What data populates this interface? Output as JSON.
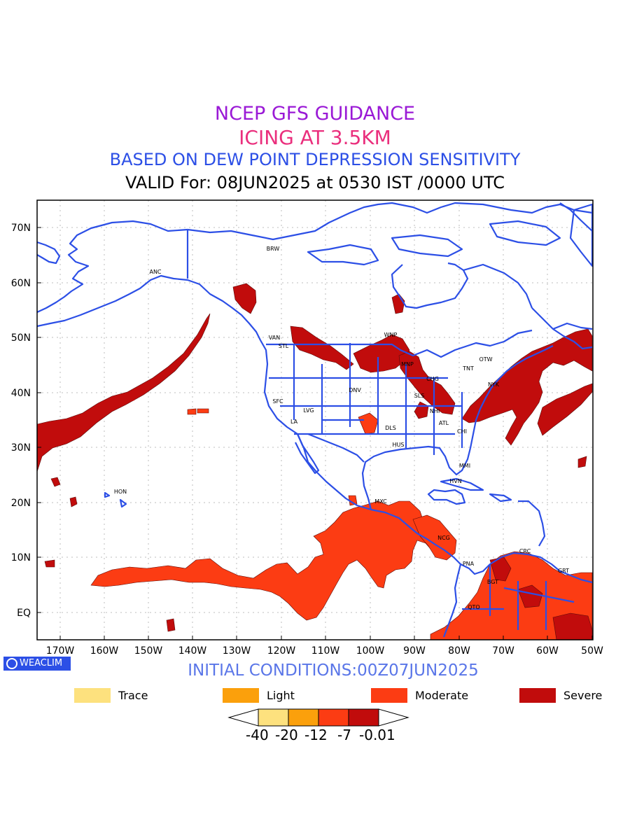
{
  "titles": {
    "line1": "NCEP GFS GUIDANCE",
    "line2": "ICING AT 3.5KM",
    "line3": "BASED ON DEW POINT DEPRESSION SENSITIVITY",
    "line4": "VALID For: 08JUN2025 at 0530 IST /0000 UTC"
  },
  "map": {
    "lon_labels": [
      "170W",
      "160W",
      "150W",
      "140W",
      "130W",
      "120W",
      "110W",
      "100W",
      "90W",
      "80W",
      "70W",
      "60W",
      "50W"
    ],
    "lat_labels": [
      "70N",
      "60N",
      "50N",
      "40N",
      "30N",
      "20N",
      "10N",
      "EQ"
    ],
    "coast_color": "#2c4fe6",
    "stations": [
      {
        "code": "ANC"
      },
      {
        "code": "BRW"
      },
      {
        "code": "VAN"
      },
      {
        "code": "STL"
      },
      {
        "code": "WNP"
      },
      {
        "code": "MNP"
      },
      {
        "code": "OTW"
      },
      {
        "code": "TNT"
      },
      {
        "code": "NYK"
      },
      {
        "code": "CHG"
      },
      {
        "code": "DNV"
      },
      {
        "code": "SFC"
      },
      {
        "code": "LVG"
      },
      {
        "code": "LA"
      },
      {
        "code": "SLS"
      },
      {
        "code": "NHI"
      },
      {
        "code": "ATL"
      },
      {
        "code": "DLS"
      },
      {
        "code": "CHI"
      },
      {
        "code": "HUS"
      },
      {
        "code": "MMI"
      },
      {
        "code": "HVN"
      },
      {
        "code": "HON"
      },
      {
        "code": "MXC"
      },
      {
        "code": "NCG"
      },
      {
        "code": "PNA"
      },
      {
        "code": "BGT"
      },
      {
        "code": "QTO"
      },
      {
        "code": "CRC"
      },
      {
        "code": "GRT"
      }
    ]
  },
  "footer": {
    "badge": "WEACLIM",
    "initial_conditions": "INITIAL CONDITIONS:00Z07JUN2025"
  },
  "legend": [
    {
      "label": "Trace",
      "color": "#fde17e"
    },
    {
      "label": "Light",
      "color": "#fba00c"
    },
    {
      "label": "Moderate",
      "color": "#fc3c13"
    },
    {
      "label": "Severe",
      "color": "#c10c0c"
    }
  ],
  "colorbar": {
    "ticks": [
      "-40",
      "-20",
      "-12",
      "-7",
      "-0.01"
    ],
    "colors": [
      "#fde17e",
      "#fba00c",
      "#fc3c13",
      "#c10c0c"
    ]
  }
}
